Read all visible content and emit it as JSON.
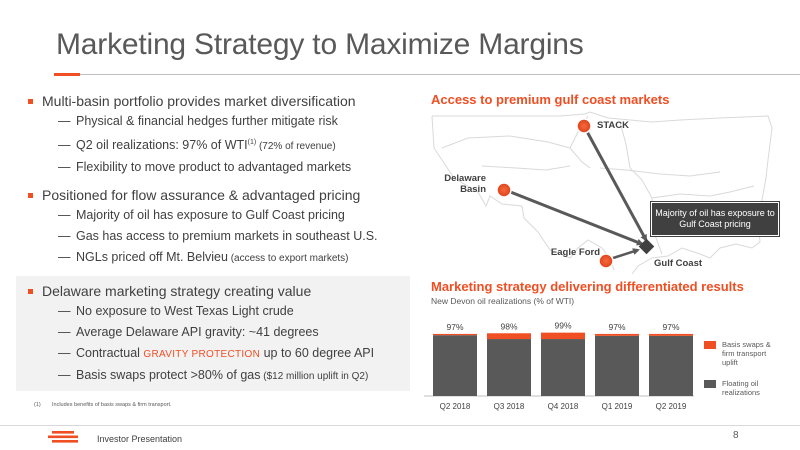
{
  "slide": {
    "title": "Marketing Strategy to Maximize Margins"
  },
  "bullets": [
    {
      "text": "Multi-basin portfolio provides market diversification",
      "subs": [
        {
          "text": "Physical & financial hedges further mitigate risk"
        },
        {
          "text": "Q2 oil realizations: 97% of WTI",
          "sup": "(1)",
          "small": " (72% of revenue)"
        },
        {
          "text": "Flexibility to move product to advantaged markets"
        }
      ]
    },
    {
      "text": "Positioned for flow assurance & advantaged pricing",
      "subs": [
        {
          "text": "Majority of oil has exposure to Gulf Coast pricing"
        },
        {
          "text": "Gas has access to premium markets in southeast U.S."
        },
        {
          "text": "NGLs priced off Mt. Belvieu",
          "small": " (access to export markets)"
        }
      ]
    },
    {
      "text": "Delaware marketing strategy creating value",
      "subs": [
        {
          "text": "No exposure to West Texas Light crude"
        },
        {
          "text": "Average Delaware API gravity: ~41 degrees"
        },
        {
          "pre": "Contractual ",
          "highlight": "GRAVITY PROTECTION",
          "text": " up to 60 degree API"
        },
        {
          "text": "Basis swaps protect >80% of gas",
          "small": " ($12 million uplift in Q2)"
        }
      ]
    }
  ],
  "sub_dash": "—",
  "footnote": {
    "number": "(1)",
    "text": "Includes benefits of basis swaps & firm transport."
  },
  "map": {
    "title": "Access to premium gulf coast markets",
    "labels": {
      "stack": "STACK",
      "delaware_line1": "Delaware",
      "delaware_line2": "Basin",
      "eagle_ford": "Eagle Ford",
      "gulf_coast": "Gulf Coast"
    },
    "callout": "Majority of oil has exposure to Gulf Coast pricing",
    "colors": {
      "marker": "#f04e23",
      "arrow": "#595959",
      "outline": "#d9d9d9"
    }
  },
  "chart_title": "Marketing strategy delivering differentiated results",
  "chart_subtitle": "New Devon oil realizations (% of WTI)",
  "chart_data": {
    "type": "bar",
    "stacked": true,
    "categories": [
      "Q2 2018",
      "Q3 2018",
      "Q4 2018",
      "Q1 2019",
      "Q2 2019"
    ],
    "totals_labels": [
      "97%",
      "98%",
      "99%",
      "97%",
      "97%"
    ],
    "totals": [
      97,
      98,
      99,
      97,
      97
    ],
    "series": [
      {
        "name": "Floating oil realizations",
        "values": [
          95,
          89,
          89,
          94,
          94
        ],
        "color": "#595959"
      },
      {
        "name": "Basis swaps & firm transport uplift",
        "values": [
          2,
          9,
          10,
          3,
          3
        ],
        "color": "#f04e23"
      }
    ],
    "ylim": [
      0,
      100
    ],
    "legend_position": "right",
    "grid": false
  },
  "legend": {
    "uplift_line1": "Basis swaps &",
    "uplift_line2": "firm transport",
    "uplift_line3": "uplift",
    "floating_line1": "Floating oil",
    "floating_line2": "realizations"
  },
  "footer": {
    "text": "Investor Presentation",
    "page": "8"
  }
}
